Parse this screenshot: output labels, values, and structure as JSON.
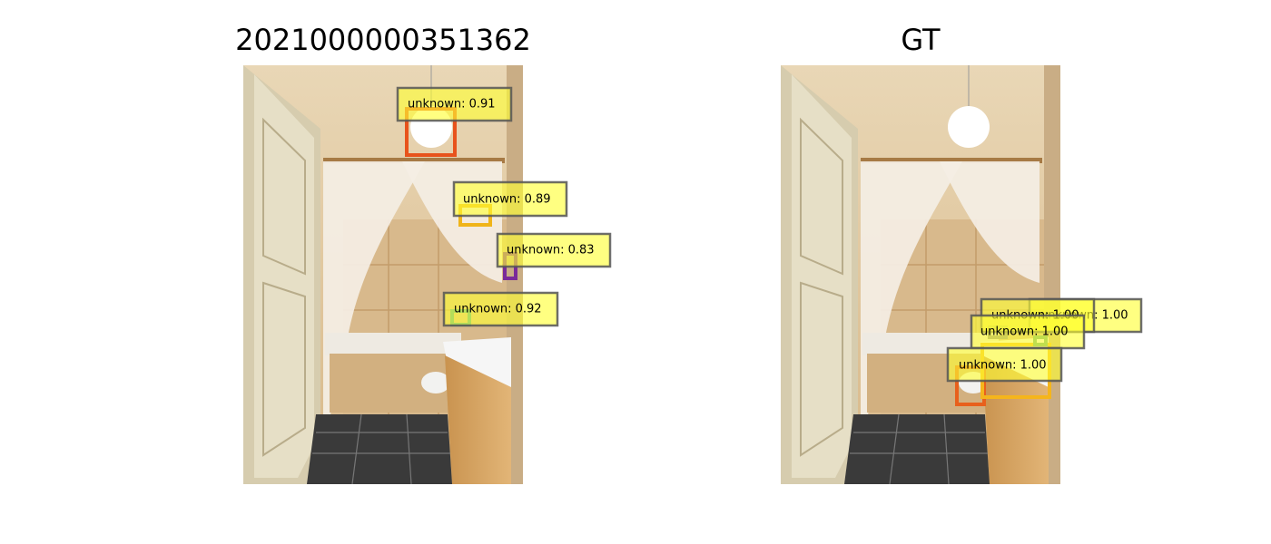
{
  "panels": [
    {
      "title": "2021000000351362",
      "detections": [
        {
          "label": "unknown: 0.91"
        },
        {
          "label": "unknown: 0.89"
        },
        {
          "label": "unknown: 0.83"
        },
        {
          "label": "unknown: 0.92"
        }
      ]
    },
    {
      "title": "GT",
      "detections": [
        {
          "label": "unknown: 1.00"
        },
        {
          "label": "unknown: 1.00"
        },
        {
          "label": "unknown: 1.00"
        },
        {
          "label": "unknown: 1.00"
        }
      ]
    }
  ]
}
